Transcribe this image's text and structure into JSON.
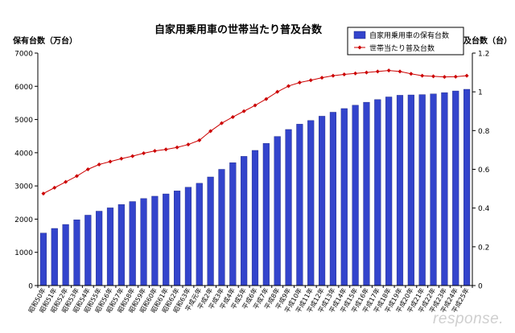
{
  "chart_data": {
    "type": "bar",
    "title": "自家用乗用車の世帯当たり普及台数",
    "ylabel_left": "保有台数（万台）",
    "ylabel_right": "普及台数（台）",
    "ylim_left": [
      0,
      7000
    ],
    "ylim_right": [
      0,
      1.2
    ],
    "yticks_left": [
      "0",
      "1000",
      "2000",
      "3000",
      "4000",
      "5000",
      "6000",
      "7000"
    ],
    "yticks_right": [
      "0",
      "0.2",
      "0.4",
      "0.6",
      "0.8",
      "1",
      "1.2"
    ],
    "legend_position": "top-right",
    "grid": false,
    "categories": [
      "昭和50年",
      "昭和51年",
      "昭和52年",
      "昭和53年",
      "昭和54年",
      "昭和55年",
      "昭和56年",
      "昭和57年",
      "昭和58年",
      "昭和59年",
      "昭和60年",
      "昭和61年",
      "昭和62年",
      "昭和63年",
      "平成元年",
      "平成2年",
      "平成3年",
      "平成4年",
      "平成5年",
      "平成6年",
      "平成7年",
      "平成8年",
      "平成9年",
      "平成10年",
      "平成11年",
      "平成12年",
      "平成13年",
      "平成14年",
      "平成15年",
      "平成16年",
      "平成17年",
      "平成18年",
      "平成19年",
      "平成20年",
      "平成21年",
      "平成22年",
      "平成23年",
      "平成24年",
      "平成25年"
    ],
    "series": [
      {
        "name": "自家用乗用車の保有台数",
        "type": "bar",
        "axis": "left",
        "color": "#3344cc",
        "values": [
          1580,
          1720,
          1840,
          1980,
          2120,
          2240,
          2340,
          2440,
          2530,
          2620,
          2690,
          2760,
          2850,
          2960,
          3080,
          3270,
          3500,
          3700,
          3890,
          4070,
          4280,
          4490,
          4700,
          4860,
          4970,
          5100,
          5220,
          5330,
          5430,
          5520,
          5600,
          5680,
          5730,
          5740,
          5750,
          5770,
          5810,
          5860,
          5910
        ]
      },
      {
        "name": "世帯当たり普及台数",
        "type": "line",
        "axis": "right",
        "color": "#cc0000",
        "values": [
          0.475,
          0.505,
          0.535,
          0.565,
          0.6,
          0.625,
          0.64,
          0.655,
          0.668,
          0.683,
          0.695,
          0.703,
          0.713,
          0.728,
          0.75,
          0.797,
          0.838,
          0.87,
          0.9,
          0.93,
          0.963,
          1.0,
          1.03,
          1.048,
          1.06,
          1.073,
          1.083,
          1.09,
          1.095,
          1.1,
          1.105,
          1.11,
          1.105,
          1.093,
          1.083,
          1.08,
          1.077,
          1.078,
          1.083
        ]
      }
    ]
  },
  "watermark": "response."
}
